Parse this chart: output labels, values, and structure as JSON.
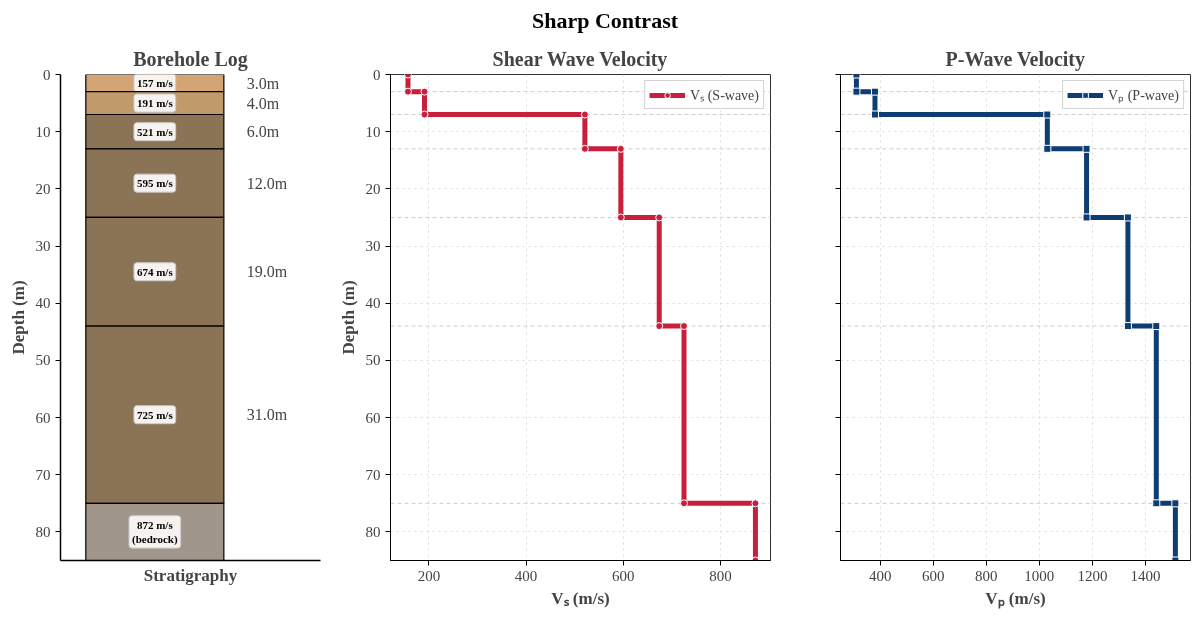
{
  "chart_data": [
    {
      "type": "other",
      "title": "Sharp Contrast"
    },
    {
      "type": "bar",
      "title": "Borehole Log",
      "xlabel": "Stratigraphy",
      "ylabel": "Depth (m)",
      "categories": [
        null
      ],
      "stacked": true,
      "ylim": [
        85,
        0
      ],
      "yticks": [
        0,
        10,
        20,
        30,
        40,
        50,
        60,
        70,
        80
      ],
      "tick_labels": "y",
      "series": [
        {
          "name": "157 m/s",
          "color": "#d4a574",
          "values": [
            3
          ]
        },
        {
          "name": "191 m/s",
          "color": "#c09a6b",
          "values": [
            4
          ]
        },
        {
          "name": "521 m/s",
          "color": "#8b7355",
          "values": [
            6
          ]
        },
        {
          "name": "595 m/s",
          "color": "#8b7355",
          "values": [
            12
          ]
        },
        {
          "name": "674 m/s",
          "color": "#8b7355",
          "values": [
            19
          ]
        },
        {
          "name": "725 m/s",
          "color": "#8b7355",
          "values": [
            31
          ]
        },
        {
          "name": "872 m/s\n(bedrock)",
          "color": "#a0968b",
          "values": [
            10
          ]
        }
      ],
      "annotations": [
        "3.0m",
        "4.0m",
        "6.0m",
        "12.0m",
        "19.0m",
        "31.0m"
      ]
    },
    {
      "type": "line",
      "title": "Shear Wave Velocity",
      "xlabel": "Vₛ (m/s)",
      "ylabel": "Depth (m)",
      "xlim": [
        121,
        903
      ],
      "xticks": [
        200,
        400,
        600,
        800
      ],
      "ylim": [
        85,
        0
      ],
      "yticks": [
        0,
        10,
        20,
        30,
        40,
        50,
        60,
        70,
        80
      ],
      "grid": true,
      "legend": "top right",
      "marker": "circle",
      "series": [
        {
          "name": "Vₛ (S-wave)",
          "color": "#c8203c",
          "x": [
            157,
            157,
            191,
            191,
            521,
            521,
            595,
            595,
            674,
            674,
            725,
            725,
            872,
            872
          ],
          "values": [
            0,
            3,
            3,
            7,
            7,
            13,
            13,
            25,
            25,
            44,
            44,
            75,
            75,
            85
          ]
        }
      ],
      "ref_lines": [
        {
          "axis": "y",
          "value": 3,
          "line_style": "dashed"
        },
        {
          "axis": "y",
          "value": 7,
          "line_style": "dashed"
        },
        {
          "axis": "y",
          "value": 13,
          "line_style": "dashed"
        },
        {
          "axis": "y",
          "value": 25,
          "line_style": "dashed"
        },
        {
          "axis": "y",
          "value": 44,
          "line_style": "dashed"
        },
        {
          "axis": "y",
          "value": 75,
          "line_style": "dashed"
        }
      ]
    },
    {
      "type": "line",
      "title": "P-Wave Velocity",
      "xlabel": "Vₚ (m/s)",
      "xlim": [
        250,
        1570
      ],
      "xticks": [
        400,
        600,
        800,
        1000,
        1200,
        1400
      ],
      "ylim": [
        85,
        0
      ],
      "yticks": [
        0,
        10,
        20,
        30,
        40,
        50,
        60,
        70,
        80
      ],
      "tick_labels": "x",
      "grid": true,
      "legend": "top right",
      "marker": "square",
      "series": [
        {
          "name": "Vₚ (P-wave)",
          "color": "#0d3d73",
          "x": [
            310,
            310,
            380,
            380,
            1030,
            1030,
            1178,
            1178,
            1334,
            1334,
            1441,
            1441,
            1513,
            1513
          ],
          "values": [
            0,
            3,
            3,
            7,
            7,
            13,
            13,
            25,
            25,
            44,
            44,
            75,
            75,
            85
          ]
        }
      ],
      "ref_lines": [
        {
          "axis": "y",
          "value": 3,
          "line_style": "dashed"
        },
        {
          "axis": "y",
          "value": 7,
          "line_style": "dashed"
        },
        {
          "axis": "y",
          "value": 13,
          "line_style": "dashed"
        },
        {
          "axis": "y",
          "value": 25,
          "line_style": "dashed"
        },
        {
          "axis": "y",
          "value": 44,
          "line_style": "dashed"
        },
        {
          "axis": "y",
          "value": 75,
          "line_style": "dashed"
        }
      ]
    }
  ]
}
